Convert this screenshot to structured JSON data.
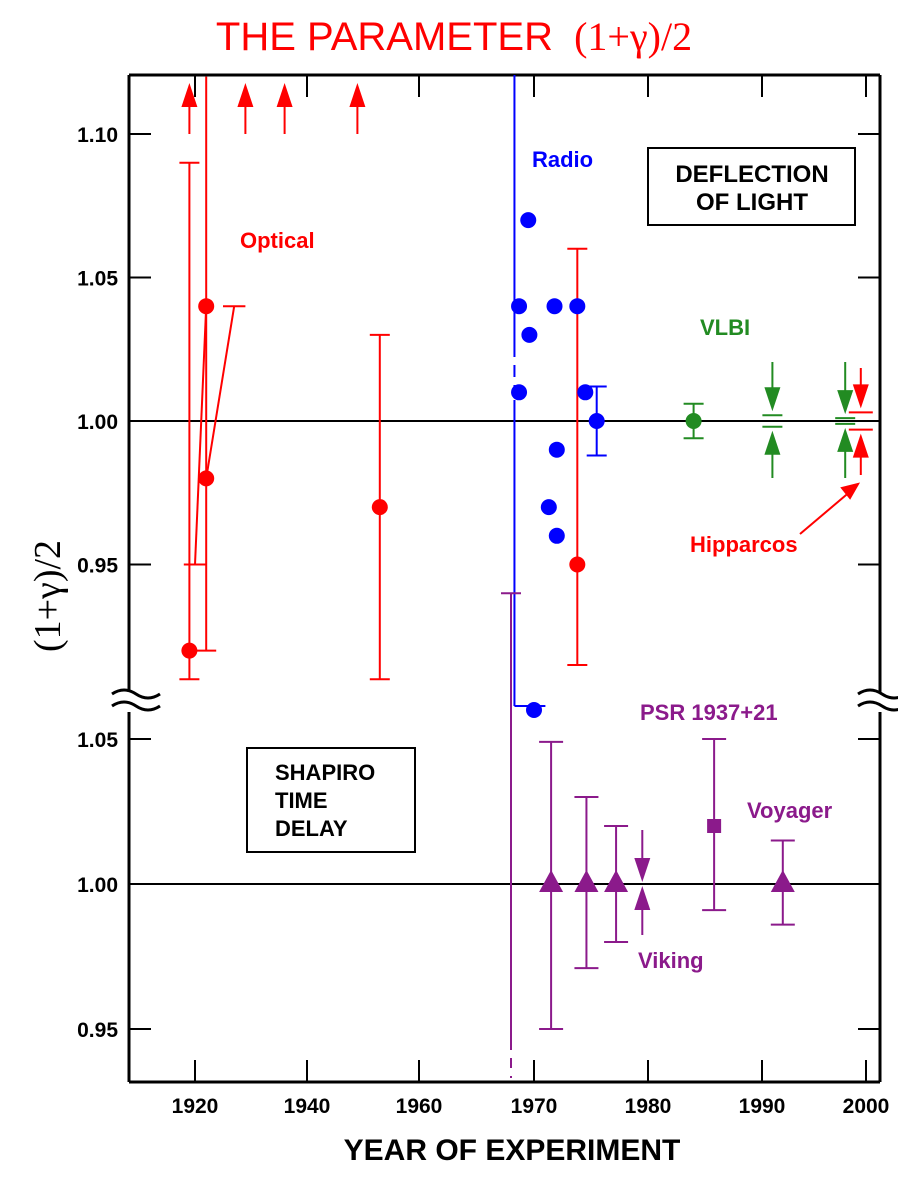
{
  "chart_data": {
    "type": "scatter",
    "title": {
      "main": "THE PARAMETER",
      "expr": "(1+γ)/2"
    },
    "xlabel": "YEAR OF EXPERIMENT",
    "ylabel": "(1+γ)/2",
    "x_ticks": [
      "1920",
      "1940",
      "1960",
      "1970",
      "1980",
      "1990",
      "2000"
    ],
    "upper_panel": {
      "label_lines": [
        "DEFLECTION",
        "OF LIGHT"
      ],
      "y_ticks": [
        "1.10",
        "1.05",
        "1.00",
        "0.95"
      ],
      "ylim": [
        0.905,
        1.12
      ],
      "reference_line": 1.0,
      "series": [
        {
          "name": "Optical",
          "color": "#ff0000",
          "points": [
            {
              "x": 1919,
              "y": 0.92,
              "err": [
                0.91,
                1.09
              ]
            },
            {
              "x": 1922,
              "y": 1.04,
              "err": [
                0.92,
                1.12
              ]
            },
            {
              "x": 1922,
              "y": 0.98
            },
            {
              "x": 1953,
              "y": 0.97,
              "err": [
                0.91,
                1.03
              ]
            },
            {
              "x": 1973.8,
              "y": 0.95,
              "err": [
                0.915,
                1.06
              ]
            }
          ],
          "lower_limits": [
            {
              "x": 1919,
              "y_from": 1.1
            },
            {
              "x": 1929,
              "y_from": 1.1
            },
            {
              "x": 1936,
              "y_from": 1.1
            },
            {
              "x": 1949,
              "y_from": 1.1
            }
          ]
        },
        {
          "name": "Radio",
          "color": "#0000ff",
          "points": [
            {
              "x": 1968.7,
              "y": 1.04
            },
            {
              "x": 1968.7,
              "y": 1.01
            },
            {
              "x": 1969.5,
              "y": 1.07
            },
            {
              "x": 1969.6,
              "y": 1.03
            },
            {
              "x": 1971.3,
              "y": 0.97
            },
            {
              "x": 1971.8,
              "y": 1.04
            },
            {
              "x": 1972,
              "y": 0.99
            },
            {
              "x": 1972,
              "y": 0.96
            },
            {
              "x": 1973.8,
              "y": 1.04
            },
            {
              "x": 1974.5,
              "y": 1.01
            },
            {
              "x": 1975.5,
              "y": 1.0,
              "err": [
                0.988,
                1.012
              ]
            }
          ]
        },
        {
          "name": "VLBI",
          "color": "#228b22",
          "points": [
            {
              "x": 1984,
              "y": 1.0,
              "err": [
                0.994,
                1.006
              ]
            },
            {
              "x": 1991,
              "y": 1.0,
              "err": [
                0.998,
                1.002
              ]
            },
            {
              "x": 1998,
              "y": 1.0,
              "err": [
                0.999,
                1.001
              ]
            }
          ]
        },
        {
          "name": "Hipparcos",
          "color": "#ff0000",
          "points": [
            {
              "x": 1999.5,
              "y": 1.0,
              "err": [
                0.997,
                1.003
              ]
            }
          ]
        }
      ],
      "broken_outlier_label": ""
    },
    "lower_panel": {
      "label_lines": [
        "SHAPIRO",
        "TIME",
        "DELAY"
      ],
      "y_ticks": [
        "1.05",
        "1.00",
        "0.95"
      ],
      "ylim": [
        0.934,
        1.062
      ],
      "reference_line": 1.0,
      "series": [
        {
          "name": "Shapiro time delay",
          "color": "#8b1a8b",
          "points": [
            {
              "x": 1968,
              "y": null,
              "err": [
                0.935,
                1.06
              ]
            },
            {
              "x": 1971.5,
              "y": 1.0,
              "err": [
                0.95,
                1.049
              ]
            },
            {
              "x": 1974.6,
              "y": 1.0,
              "err": [
                0.971,
                1.03
              ]
            },
            {
              "x": 1977.2,
              "y": 1.0,
              "err": [
                0.98,
                1.02
              ]
            },
            {
              "x": 1979.5,
              "y": 1.0,
              "err": [
                0.999,
                1.001
              ]
            }
          ]
        },
        {
          "name": "PSR 1937+21",
          "color": "#8b1a8b",
          "points": [
            {
              "x": 1985.8,
              "y": 1.02,
              "err": [
                0.991,
                1.05
              ]
            }
          ]
        },
        {
          "name": "Voyager",
          "color": "#8b1a8b",
          "points": [
            {
              "x": 1992,
              "y": 1.0,
              "err": [
                0.986,
                1.015
              ]
            }
          ]
        }
      ],
      "annotations": [
        "PSR 1937+21",
        "Voyager",
        "Viking"
      ]
    },
    "series_labels": {
      "optical": "Optical",
      "radio": "Radio",
      "vlbi": "VLBI",
      "hipparcos": "Hipparcos",
      "psr": "PSR 1937+21",
      "voyager": "Voyager",
      "viking": "Viking"
    },
    "colors": {
      "optical": "#ff0000",
      "radio": "#0000ff",
      "vlbi": "#228b22",
      "shapiro": "#8b1a8b",
      "axis": "#000000"
    }
  }
}
